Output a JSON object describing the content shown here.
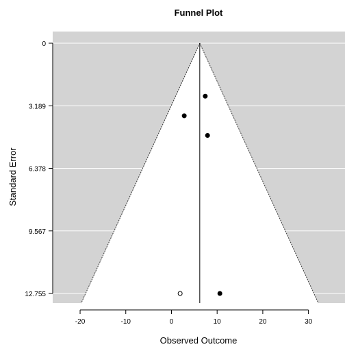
{
  "chart_data": {
    "type": "scatter",
    "title": "Funnel Plot",
    "xlabel": "Observed Outcome",
    "ylabel": "Standard Error",
    "xlim": [
      -26,
      38
    ],
    "ylim": [
      12.755,
      0
    ],
    "y_reversed": true,
    "xticks": [
      -20,
      -10,
      0,
      10,
      20,
      30
    ],
    "yticks": [
      0,
      3.189,
      6.378,
      9.567,
      12.755
    ],
    "ytick_labels": [
      "0",
      "3.189",
      "6.378",
      "9.567",
      "12.755"
    ],
    "grid": "horizontal",
    "funnel": {
      "center": 6.2,
      "max_se": 12.755,
      "z": 1.96,
      "inside_color": "#ffffff",
      "outside_color": "#d3d3d3"
    },
    "points": [
      {
        "x": 7.4,
        "y": 2.7,
        "filled": true
      },
      {
        "x": 2.8,
        "y": 3.7,
        "filled": true
      },
      {
        "x": 7.9,
        "y": 4.7,
        "filled": true
      },
      {
        "x": 10.6,
        "y": 12.755,
        "filled": true
      },
      {
        "x": 1.9,
        "y": 12.755,
        "filled": false
      }
    ]
  }
}
